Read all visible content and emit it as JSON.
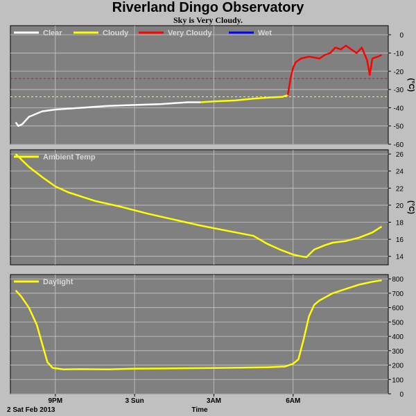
{
  "header": {
    "title": "Riverland Dingo Observatory",
    "subtitle": "Sky is Very Cloudy."
  },
  "footer": {
    "date_label": "2 Sat Feb 2013",
    "time_label": "Time"
  },
  "colors": {
    "panel_bg": "#808080",
    "page_bg": "#c0c0c0",
    "grid": "#c8c8c8",
    "clear": "#ffffff",
    "cloudy": "#ffff00",
    "very_cloudy": "#ff0000",
    "wet": "#0000ff"
  },
  "chart_data": [
    {
      "type": "line",
      "name": "sky",
      "legend": [
        "Clear",
        "Cloudy",
        "Very Cloudy",
        "Wet"
      ],
      "ylabel": "(°C)",
      "ylim": [
        -60,
        5
      ],
      "yticks": [
        0,
        -10,
        -20,
        -30,
        -40,
        -50,
        -60
      ],
      "thresholds": [
        {
          "value": -24,
          "color": "#ff0000"
        },
        {
          "value": -34,
          "color": "#ffff00"
        }
      ],
      "x_hours": [
        19.5,
        19.6,
        19.75,
        20.0,
        20.5,
        21.0,
        22.0,
        23.0,
        24.0,
        25.0,
        26.0,
        26.5,
        27.0,
        27.8,
        28.5,
        29.0,
        29.6,
        29.8,
        29.9,
        30.0,
        30.1,
        30.3,
        30.6,
        31.0,
        31.2,
        31.4,
        31.6,
        31.8,
        32.0,
        32.2,
        32.4,
        32.6,
        32.8,
        32.9,
        33.0,
        33.2,
        33.35
      ],
      "series": [
        {
          "name": "Clear",
          "points": [
            [
              19.5,
              -48
            ],
            [
              19.6,
              -50
            ],
            [
              19.75,
              -49
            ],
            [
              20.0,
              -45
            ],
            [
              20.5,
              -42
            ],
            [
              21.0,
              -41
            ],
            [
              22.0,
              -40
            ],
            [
              23.0,
              -39
            ],
            [
              24.0,
              -38.5
            ],
            [
              25.0,
              -38
            ],
            [
              26.0,
              -37
            ],
            [
              26.5,
              -37
            ]
          ]
        },
        {
          "name": "Cloudy",
          "points": [
            [
              26.5,
              -37
            ],
            [
              27.0,
              -36.5
            ],
            [
              27.8,
              -36
            ],
            [
              28.5,
              -35
            ],
            [
              29.0,
              -34.5
            ],
            [
              29.6,
              -34
            ],
            [
              29.8,
              -33
            ]
          ]
        },
        {
          "name": "Very Cloudy",
          "points": [
            [
              29.8,
              -33
            ],
            [
              29.9,
              -24
            ],
            [
              30.0,
              -18
            ],
            [
              30.1,
              -15
            ],
            [
              30.3,
              -13
            ],
            [
              30.6,
              -12
            ],
            [
              31.0,
              -13
            ],
            [
              31.2,
              -11
            ],
            [
              31.4,
              -10
            ],
            [
              31.6,
              -7
            ],
            [
              31.8,
              -8
            ],
            [
              32.0,
              -6
            ],
            [
              32.2,
              -8
            ],
            [
              32.4,
              -10
            ],
            [
              32.6,
              -7
            ],
            [
              32.8,
              -14
            ],
            [
              32.9,
              -22
            ],
            [
              33.0,
              -13
            ],
            [
              33.2,
              -12
            ],
            [
              33.35,
              -11
            ]
          ]
        },
        {
          "name": "Wet",
          "points": []
        }
      ]
    },
    {
      "type": "line",
      "name": "ambient",
      "legend": [
        "Ambient Temp"
      ],
      "ylabel": "(°C)",
      "ylim": [
        13,
        26.5
      ],
      "yticks": [
        26,
        24,
        22,
        20,
        18,
        16,
        14
      ],
      "series": [
        {
          "name": "Ambient Temp",
          "points": [
            [
              19.5,
              26
            ],
            [
              20.0,
              24.5
            ],
            [
              20.5,
              23.3
            ],
            [
              21.0,
              22.2
            ],
            [
              21.5,
              21.5
            ],
            [
              22.5,
              20.5
            ],
            [
              23.5,
              19.8
            ],
            [
              24.5,
              19.0
            ],
            [
              25.5,
              18.3
            ],
            [
              26.5,
              17.6
            ],
            [
              27.5,
              17.0
            ],
            [
              28.5,
              16.4
            ],
            [
              29.0,
              15.5
            ],
            [
              29.5,
              14.8
            ],
            [
              30.0,
              14.2
            ],
            [
              30.3,
              14.0
            ],
            [
              30.5,
              13.9
            ],
            [
              30.8,
              14.8
            ],
            [
              31.2,
              15.3
            ],
            [
              31.5,
              15.6
            ],
            [
              32.0,
              15.8
            ],
            [
              32.5,
              16.2
            ],
            [
              33.0,
              16.8
            ],
            [
              33.35,
              17.5
            ]
          ]
        }
      ]
    },
    {
      "type": "line",
      "name": "daylight",
      "legend": [
        "Daylight"
      ],
      "ylabel": "",
      "ylim": [
        0,
        830
      ],
      "yticks": [
        800,
        700,
        600,
        500,
        400,
        300,
        200,
        100,
        0
      ],
      "series": [
        {
          "name": "Daylight",
          "points": [
            [
              19.5,
              720
            ],
            [
              19.7,
              680
            ],
            [
              20.0,
              600
            ],
            [
              20.3,
              480
            ],
            [
              20.5,
              350
            ],
            [
              20.7,
              220
            ],
            [
              20.9,
              180
            ],
            [
              21.3,
              170
            ],
            [
              22.0,
              172
            ],
            [
              23.0,
              170
            ],
            [
              24.0,
              175
            ],
            [
              25.0,
              176
            ],
            [
              26.0,
              178
            ],
            [
              27.0,
              180
            ],
            [
              28.0,
              182
            ],
            [
              29.0,
              185
            ],
            [
              29.7,
              190
            ],
            [
              30.0,
              210
            ],
            [
              30.2,
              240
            ],
            [
              30.4,
              380
            ],
            [
              30.6,
              540
            ],
            [
              30.8,
              620
            ],
            [
              31.0,
              650
            ],
            [
              31.5,
              700
            ],
            [
              32.0,
              730
            ],
            [
              32.5,
              760
            ],
            [
              33.0,
              780
            ],
            [
              33.35,
              790
            ]
          ]
        }
      ]
    }
  ],
  "x_axis": {
    "ticks": [
      {
        "hour": 21,
        "label": "9PM"
      },
      {
        "hour": 24,
        "label": "3 Sun"
      },
      {
        "hour": 27,
        "label": "3AM"
      },
      {
        "hour": 30,
        "label": "6AM"
      }
    ]
  }
}
